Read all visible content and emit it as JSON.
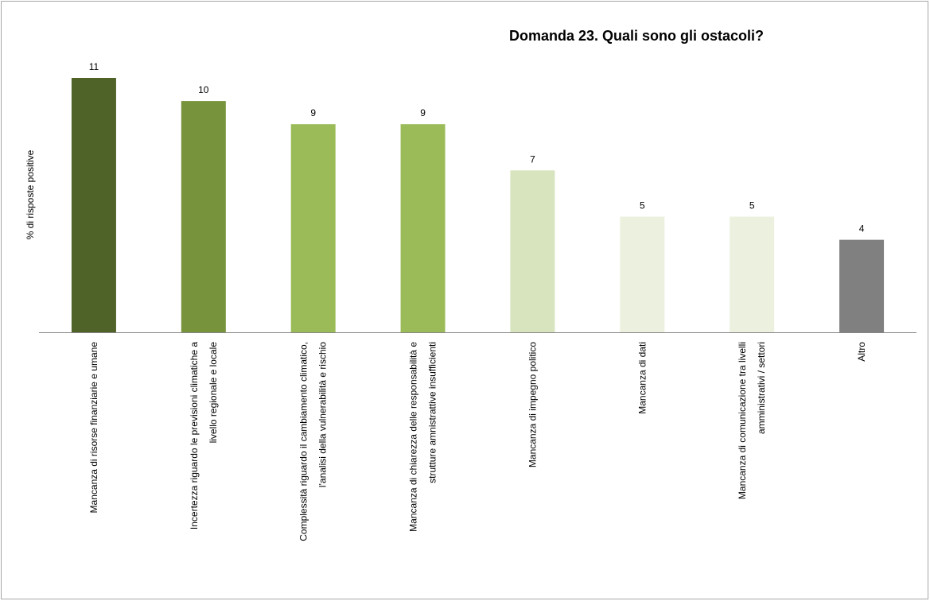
{
  "chart_data": {
    "type": "bar",
    "title": "Domanda 23. Quali sono gli ostacoli?",
    "y_label": "% di risposte positive",
    "categories": [
      "Mancanza di risorse finanziarie e umane",
      "Incertezza riguardo le previsioni climatiche a\nlivello regionale e locale",
      "Complessità riguardo il cambiamento climatico,\nl'analisi della vulnerabilità e rischio",
      "Mancanza di chiarezza delle responsabilità e\nstrutture amnistrattive insufficienti",
      "Mancanza di impegno politico",
      "Mancanza di dati",
      "Mancanza di comunicazione tra livelli\namministrativi / settori",
      "Altro"
    ],
    "values": [
      11,
      10,
      9,
      9,
      7,
      5,
      5,
      4
    ],
    "colors": [
      "#4f6228",
      "#77933c",
      "#9bbb59",
      "#9bbb59",
      "#d7e4bd",
      "#ebf1de",
      "#ebf1de",
      "#808080"
    ],
    "ylim": [
      0,
      11
    ]
  }
}
